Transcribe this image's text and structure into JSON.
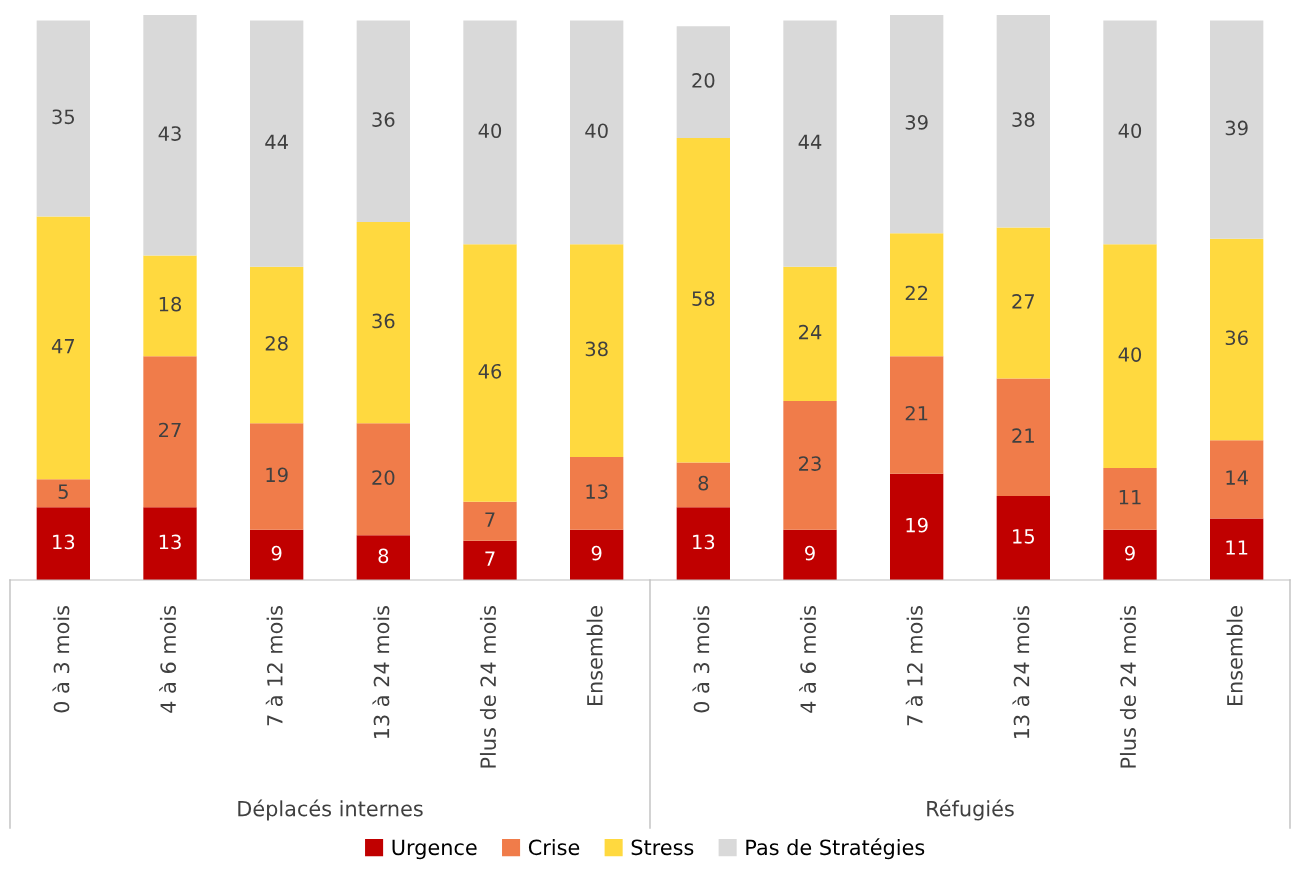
{
  "chart_data": {
    "type": "bar",
    "stacked": true,
    "data_labels": true,
    "legend": "bottom",
    "grid": false,
    "categories": [
      "0 à 3 mois",
      "4 à 6 mois",
      "7 à 12 mois",
      "13 à 24 mois",
      "Plus de 24 mois",
      "Ensemble",
      "0 à 3 mois",
      "4 à 6 mois",
      "7 à 12 mois",
      "13 à 24 mois",
      "Plus de 24 mois",
      "Ensemble"
    ],
    "series": [
      {
        "name": "Urgence",
        "color": "#c00000",
        "values": [
          13,
          13,
          9,
          8,
          7,
          9,
          13,
          9,
          19,
          15,
          9,
          11
        ]
      },
      {
        "name": "Crise",
        "color": "#f07c4a",
        "values": [
          5,
          27,
          19,
          20,
          7,
          13,
          8,
          23,
          21,
          21,
          11,
          14
        ]
      },
      {
        "name": "Stress",
        "color": "#ffd93f",
        "values": [
          47,
          18,
          28,
          36,
          46,
          38,
          58,
          24,
          22,
          27,
          40,
          36
        ]
      },
      {
        "name": "Pas de Stratégies",
        "color": "#d9d9d9",
        "values": [
          35,
          43,
          44,
          36,
          40,
          40,
          20,
          44,
          39,
          38,
          40,
          39
        ]
      }
    ],
    "annotations": [
      "Déplacés internes",
      "Réfugiés"
    ]
  }
}
